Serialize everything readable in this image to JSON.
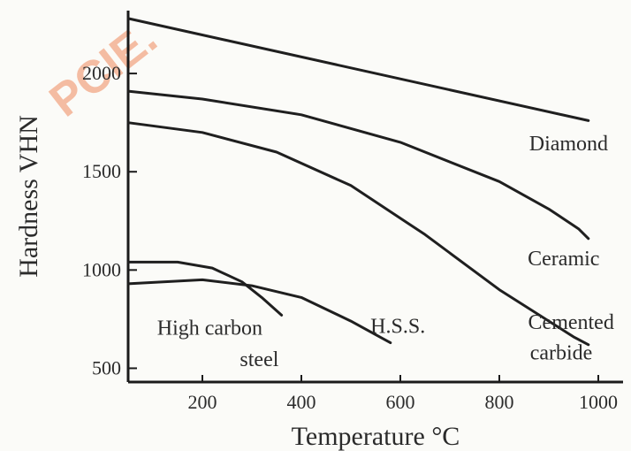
{
  "watermark": "PCIE.",
  "chart_data": {
    "type": "line",
    "xlabel": "Temperature °C",
    "ylabel": "Hardness  VHN",
    "xlim": [
      50,
      1050
    ],
    "ylim": [
      430,
      2320
    ],
    "x_ticks": [
      {
        "value": 200,
        "label": "200"
      },
      {
        "value": 400,
        "label": "400"
      },
      {
        "value": 600,
        "label": "600"
      },
      {
        "value": 800,
        "label": "800"
      },
      {
        "value": 1000,
        "label": "1000"
      }
    ],
    "y_ticks": [
      {
        "value": 500,
        "label": "500"
      },
      {
        "value": 1000,
        "label": "1000"
      },
      {
        "value": 1500,
        "label": "1500"
      },
      {
        "value": 2000,
        "label": "2000"
      }
    ],
    "series": [
      {
        "name": "Diamond",
        "x": [
          50,
          980
        ],
        "y": [
          2280,
          1760
        ]
      },
      {
        "name": "Ceramic",
        "x": [
          50,
          200,
          400,
          600,
          800,
          900,
          960,
          980
        ],
        "y": [
          1910,
          1870,
          1790,
          1650,
          1450,
          1310,
          1210,
          1160
        ]
      },
      {
        "name": "Cemented carbide",
        "x": [
          50,
          200,
          350,
          500,
          650,
          800,
          950,
          980
        ],
        "y": [
          1750,
          1700,
          1600,
          1430,
          1180,
          900,
          660,
          620
        ]
      },
      {
        "name": "High carbon steel",
        "x": [
          50,
          150,
          220,
          280,
          320,
          360
        ],
        "y": [
          1040,
          1040,
          1010,
          940,
          860,
          770
        ]
      },
      {
        "name": "H.S.S.",
        "x": [
          50,
          200,
          300,
          400,
          500,
          580
        ],
        "y": [
          930,
          950,
          920,
          860,
          740,
          630
        ]
      }
    ],
    "series_label_positions": [
      {
        "text": "Diamond",
        "x": 940,
        "y": 1610
      },
      {
        "text": "Ceramic",
        "x": 930,
        "y": 1025
      },
      {
        "text": "Cemented",
        "x": 945,
        "y": 700
      },
      {
        "text": "carbide",
        "x": 925,
        "y": 545
      },
      {
        "text": "High carbon",
        "x": 215,
        "y": 670
      },
      {
        "text": "steel",
        "x": 315,
        "y": 510
      },
      {
        "text": "H.S.S.",
        "x": 595,
        "y": 680
      }
    ],
    "grid": false,
    "legend": "none"
  }
}
